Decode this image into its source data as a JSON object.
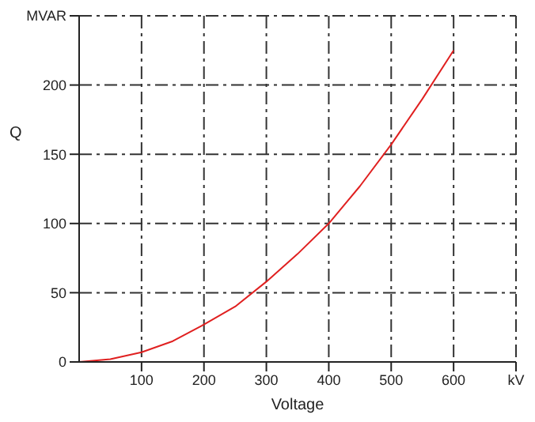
{
  "chart_data": {
    "type": "line",
    "xlabel": "Voltage",
    "ylabel": "Q",
    "x": [
      0,
      50,
      100,
      150,
      200,
      250,
      300,
      350,
      400,
      450,
      500,
      550,
      600
    ],
    "series": [
      {
        "color": "#e02020",
        "values": [
          0,
          2,
          7,
          15,
          27,
          40,
          58,
          78,
          100,
          127,
          157,
          190,
          225
        ]
      }
    ],
    "xlim": [
      0,
      700
    ],
    "xticks": [
      100,
      200,
      300,
      400,
      500,
      600,
      {
        "value": 700,
        "label": "kV"
      }
    ],
    "ylim": [
      0,
      250
    ],
    "yticks": [
      0,
      50,
      100,
      150,
      200,
      {
        "value": 250,
        "label": "MVAR"
      }
    ],
    "grid": true,
    "line_style": "solid"
  }
}
